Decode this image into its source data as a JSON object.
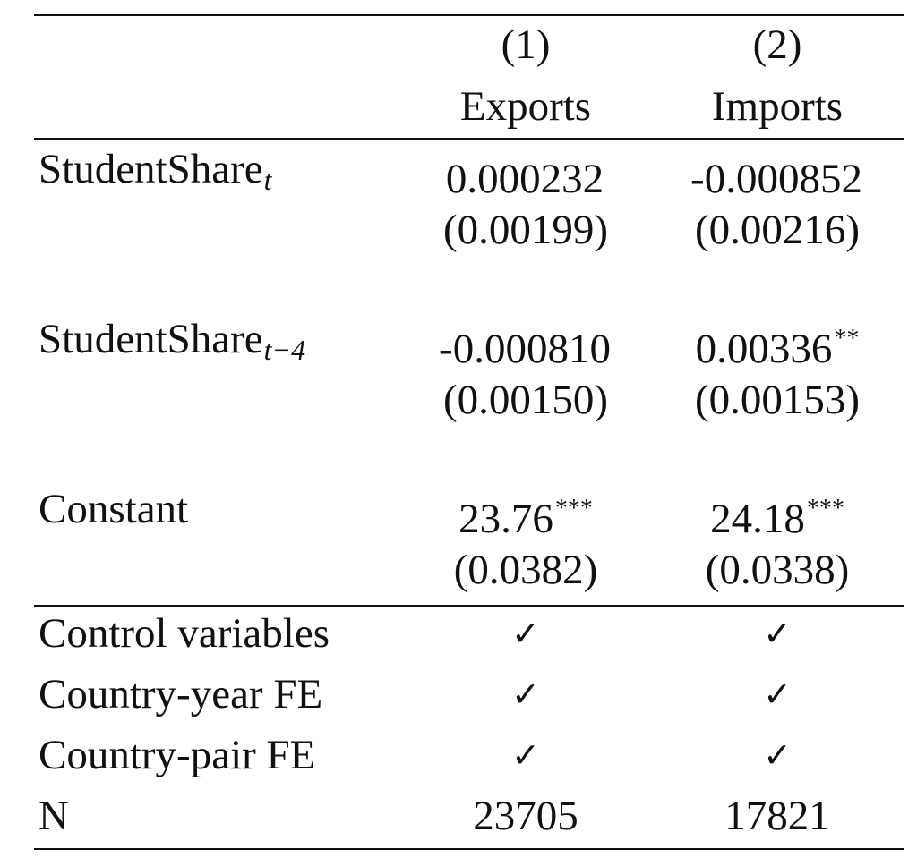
{
  "header": {
    "col1_number": "(1)",
    "col2_number": "(2)",
    "col1_name": "Exports",
    "col2_name": "Imports"
  },
  "rows": [
    {
      "label": "StudentShare",
      "label_subscript": "t",
      "col1_coef": "0.000232",
      "col1_stars": "",
      "col1_se": "(0.00199)",
      "col2_coef": "-0.000852",
      "col2_stars": "",
      "col2_se": "(0.00216)"
    },
    {
      "label": "StudentShare",
      "label_subscript": "t−4",
      "col1_coef": "-0.000810",
      "col1_stars": "",
      "col1_se": "(0.00150)",
      "col2_coef": "0.00336",
      "col2_stars": "**",
      "col2_se": "(0.00153)"
    },
    {
      "label": "Constant",
      "label_subscript": "",
      "col1_coef": "23.76",
      "col1_stars": "***",
      "col1_se": "(0.0382)",
      "col2_coef": "24.18",
      "col2_stars": "***",
      "col2_se": "(0.0338)"
    }
  ],
  "controls": [
    {
      "label": "Control variables",
      "col1": "✓",
      "col2": "✓"
    },
    {
      "label": "Country-year FE",
      "col1": "✓",
      "col2": "✓"
    },
    {
      "label": "Country-pair FE",
      "col1": "✓",
      "col2": "✓"
    }
  ],
  "n_row": {
    "label": "N",
    "col1": "23705",
    "col2": "17821"
  }
}
